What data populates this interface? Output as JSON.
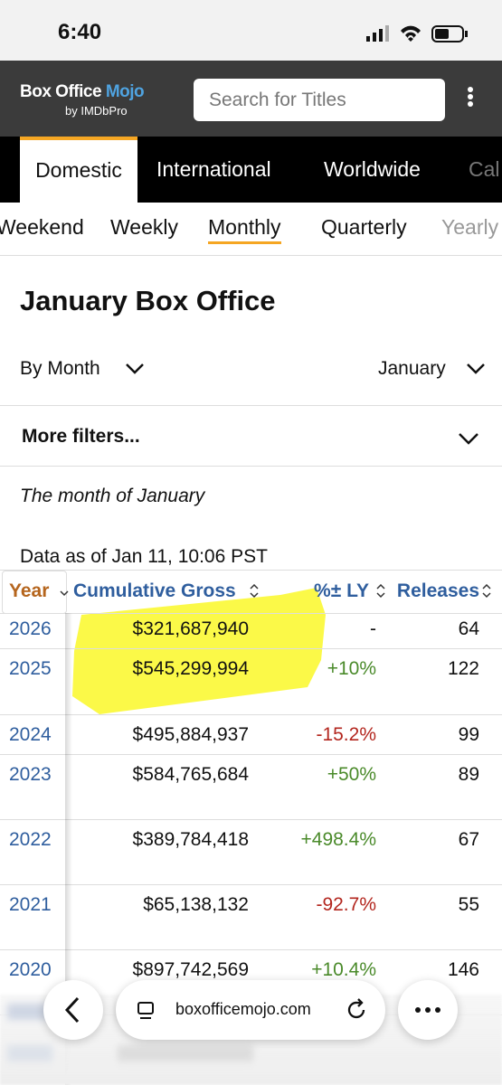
{
  "status_bar": {
    "time": "6:40"
  },
  "header": {
    "logo_main": "Box Office",
    "logo_accent": "Mojo",
    "logo_sub": "by IMDbPro",
    "search_placeholder": "Search for Titles"
  },
  "tabs": {
    "items": [
      "Domestic",
      "International",
      "Worldwide",
      "Cal"
    ],
    "active": 0
  },
  "subtabs": {
    "items": [
      "Weekend",
      "Weekly",
      "Monthly",
      "Quarterly",
      "Yearly"
    ],
    "active": 2
  },
  "page": {
    "title": "January Box Office",
    "filter_by": "By Month",
    "filter_month": "January",
    "more_filters": "More filters...",
    "description": "The month of January",
    "data_as_of": "Data as of Jan 11, 10:06 PST"
  },
  "table": {
    "columns": [
      "Year",
      "Cumulative Gross",
      "%± LY",
      "Releases"
    ],
    "rows": [
      [
        "2026",
        "$321,687,940",
        "-",
        "64"
      ],
      [
        "2025",
        "$545,299,994",
        "+10%",
        "122"
      ],
      [
        "2024",
        "$495,884,937",
        "-15.2%",
        "99"
      ],
      [
        "2023",
        "$584,765,684",
        "+50%",
        "89"
      ],
      [
        "2022",
        "$389,784,418",
        "+498.4%",
        "67"
      ],
      [
        "2021",
        "$65,138,132",
        "-92.7%",
        "55"
      ],
      [
        "2020",
        "$897,742,569",
        "+10.4%",
        "146"
      ]
    ]
  },
  "browser_bar": {
    "url": "boxofficemojo.com"
  }
}
